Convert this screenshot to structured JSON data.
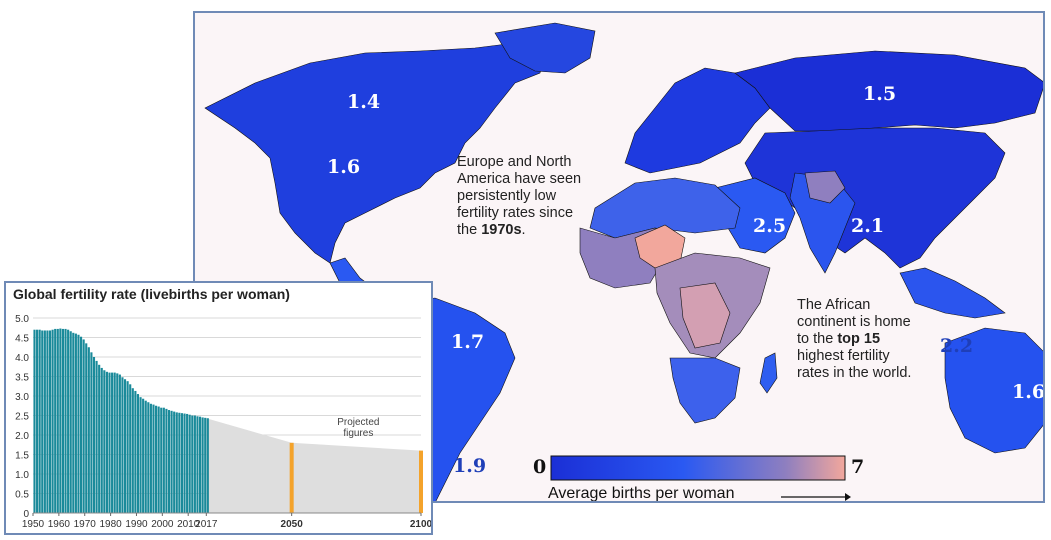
{
  "map": {
    "labels": {
      "north_america_upper": "1.4",
      "north_america_lower": "1.6",
      "russia": "1.5",
      "middle_east": "2.5",
      "south_asia": "2.1",
      "southeast_asia": "2.2",
      "australia": "1.6",
      "south_america_upper": "1.7",
      "south_america_lower": "1.9"
    },
    "notes": {
      "europe_na": [
        "Europe and North",
        "America have seen",
        "persistently low",
        "fertility rates since",
        "the",
        "1970s",
        "."
      ],
      "africa": [
        "The African",
        "continent is home",
        "to the",
        "top 15",
        "highest fertility",
        "rates in the world."
      ]
    },
    "scale": {
      "min": "0",
      "max": "7",
      "caption": "Average births per woman",
      "colors": [
        "#1b2fd6",
        "#2a59f2",
        "#8f7fbf",
        "#f2a79c"
      ]
    }
  },
  "chart_data": {
    "type": "bar",
    "title": "Global fertility rate (livebirths per woman)",
    "ylim": [
      0,
      5
    ],
    "y_ticks": [
      "0",
      "0.5",
      "1.0",
      "1.5",
      "2.0",
      "2.5",
      "3.0",
      "3.5",
      "4.0",
      "4.5",
      "5.0"
    ],
    "x_ticks": [
      "1950",
      "1960",
      "1970",
      "1980",
      "1990",
      "2000",
      "2010",
      "2017",
      "2050",
      "2100"
    ],
    "x": [
      1950,
      1951,
      1952,
      1953,
      1954,
      1955,
      1956,
      1957,
      1958,
      1959,
      1960,
      1961,
      1962,
      1963,
      1964,
      1965,
      1966,
      1967,
      1968,
      1969,
      1970,
      1971,
      1972,
      1973,
      1974,
      1975,
      1976,
      1977,
      1978,
      1979,
      1980,
      1981,
      1982,
      1983,
      1984,
      1985,
      1986,
      1987,
      1988,
      1989,
      1990,
      1991,
      1992,
      1993,
      1994,
      1995,
      1996,
      1997,
      1998,
      1999,
      2000,
      2001,
      2002,
      2003,
      2004,
      2005,
      2006,
      2007,
      2008,
      2009,
      2010,
      2011,
      2012,
      2013,
      2014,
      2015,
      2016,
      2017
    ],
    "values": [
      4.7,
      4.7,
      4.7,
      4.68,
      4.68,
      4.68,
      4.68,
      4.7,
      4.72,
      4.72,
      4.73,
      4.72,
      4.72,
      4.7,
      4.66,
      4.62,
      4.6,
      4.57,
      4.52,
      4.45,
      4.35,
      4.25,
      4.12,
      4.0,
      3.9,
      3.8,
      3.72,
      3.66,
      3.62,
      3.6,
      3.6,
      3.6,
      3.58,
      3.55,
      3.48,
      3.43,
      3.38,
      3.3,
      3.2,
      3.13,
      3.05,
      2.97,
      2.93,
      2.88,
      2.84,
      2.8,
      2.78,
      2.75,
      2.73,
      2.7,
      2.7,
      2.67,
      2.64,
      2.62,
      2.6,
      2.58,
      2.57,
      2.56,
      2.55,
      2.54,
      2.52,
      2.5,
      2.5,
      2.48,
      2.47,
      2.45,
      2.44,
      2.43
    ],
    "projected": {
      "label_lines": [
        "Projected",
        "figures"
      ],
      "x": [
        2050,
        2100
      ],
      "values": [
        1.8,
        1.6
      ]
    },
    "colors": {
      "bar": "#1a8a9a",
      "projected": "#f4a32b",
      "projected_area": "#dedede",
      "grid": "#d9d9d9"
    }
  }
}
